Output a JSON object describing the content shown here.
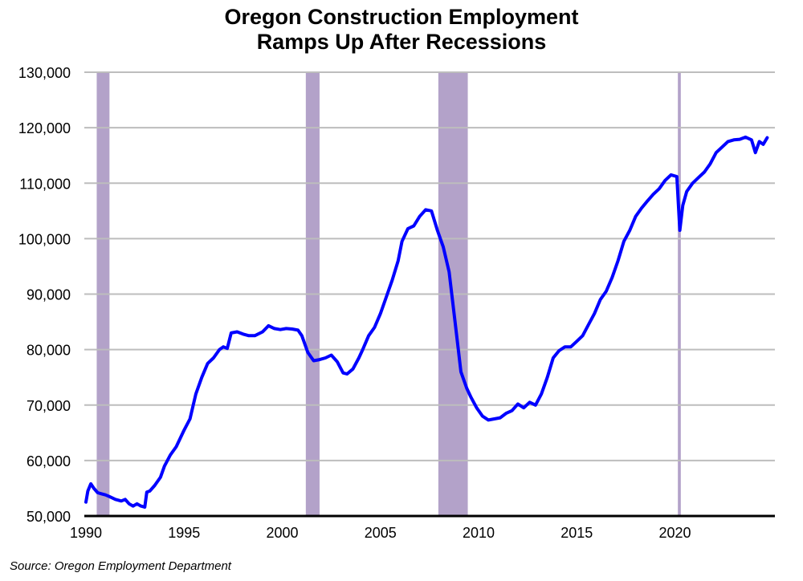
{
  "chart_data": {
    "type": "line",
    "title": "Oregon Construction Employment Ramps Up After Recessions",
    "title_lines": [
      "Oregon Construction Employment",
      "Ramps Up After Recessions"
    ],
    "xlabel": "",
    "ylabel": "",
    "source": "Source: Oregon Employment Department",
    "xlim": [
      1990,
      2025.2
    ],
    "ylim": [
      50000,
      130000
    ],
    "x_ticks": [
      1990,
      1995,
      2000,
      2005,
      2010,
      2015,
      2020
    ],
    "y_ticks": [
      50000,
      60000,
      70000,
      80000,
      90000,
      100000,
      110000,
      120000,
      130000
    ],
    "y_tick_labels": [
      "50,000",
      "60,000",
      "70,000",
      "80,000",
      "90,000",
      "100,000",
      "110,000",
      "120,000",
      "130,000"
    ],
    "grid": {
      "horizontal": true,
      "vertical": false,
      "color": "#bdbdbd"
    },
    "legend": null,
    "colors": {
      "line": "#0000ff",
      "recession": "#b3a2c9",
      "axis": "#000000"
    },
    "recessions": [
      {
        "start": 1990.55,
        "end": 1991.2
      },
      {
        "start": 2001.2,
        "end": 2001.9
      },
      {
        "start": 2007.95,
        "end": 2009.45
      },
      {
        "start": 2020.15,
        "end": 2020.3
      }
    ],
    "series": [
      {
        "name": "Oregon Construction Employment",
        "x": [
          1990.0,
          1990.1,
          1990.25,
          1990.4,
          1990.6,
          1990.8,
          1991.0,
          1991.2,
          1991.5,
          1991.8,
          1992.0,
          1992.2,
          1992.4,
          1992.6,
          1992.8,
          1993.0,
          1993.1,
          1993.25,
          1993.5,
          1993.8,
          1994.0,
          1994.3,
          1994.6,
          1995.0,
          1995.3,
          1995.6,
          1995.9,
          1996.2,
          1996.5,
          1996.8,
          1997.0,
          1997.2,
          1997.4,
          1997.7,
          1998.0,
          1998.3,
          1998.6,
          1999.0,
          1999.3,
          1999.6,
          1999.9,
          2000.2,
          2000.5,
          2000.8,
          2001.0,
          2001.3,
          2001.6,
          2001.9,
          2002.2,
          2002.5,
          2002.8,
          2003.1,
          2003.3,
          2003.6,
          2003.9,
          2004.1,
          2004.4,
          2004.7,
          2005.0,
          2005.3,
          2005.6,
          2005.9,
          2006.1,
          2006.4,
          2006.7,
          2007.0,
          2007.3,
          2007.6,
          2007.9,
          2008.2,
          2008.5,
          2008.8,
          2009.1,
          2009.4,
          2009.6,
          2009.9,
          2010.2,
          2010.5,
          2010.8,
          2011.1,
          2011.4,
          2011.7,
          2012.0,
          2012.3,
          2012.6,
          2012.9,
          2013.2,
          2013.5,
          2013.8,
          2014.1,
          2014.4,
          2014.7,
          2015.0,
          2015.3,
          2015.6,
          2015.9,
          2016.2,
          2016.5,
          2016.8,
          2017.1,
          2017.4,
          2017.7,
          2018.0,
          2018.3,
          2018.6,
          2018.9,
          2019.2,
          2019.5,
          2019.8,
          2020.1,
          2020.25,
          2020.4,
          2020.6,
          2020.9,
          2021.2,
          2021.5,
          2021.8,
          2022.1,
          2022.4,
          2022.7,
          2023.0,
          2023.3,
          2023.6,
          2023.9,
          2024.1,
          2024.3,
          2024.5,
          2024.7
        ],
        "values": [
          52500,
          54500,
          55800,
          55000,
          54200,
          54000,
          53800,
          53500,
          53000,
          52700,
          53000,
          52200,
          51800,
          52200,
          51800,
          51600,
          54300,
          54500,
          55500,
          57000,
          59000,
          61000,
          62500,
          65500,
          67500,
          72000,
          75000,
          77500,
          78500,
          80000,
          80500,
          80200,
          83000,
          83200,
          82800,
          82500,
          82500,
          83200,
          84300,
          83800,
          83600,
          83800,
          83700,
          83500,
          82500,
          79500,
          78000,
          78200,
          78500,
          79000,
          77800,
          75800,
          75600,
          76500,
          78500,
          80000,
          82500,
          84000,
          86500,
          89500,
          92500,
          96000,
          99500,
          101800,
          102300,
          104000,
          105200,
          105000,
          101500,
          98500,
          94000,
          85000,
          76000,
          73000,
          71500,
          69500,
          68000,
          67300,
          67500,
          67700,
          68500,
          69000,
          70200,
          69500,
          70500,
          70000,
          72000,
          75000,
          78500,
          79800,
          80500,
          80500,
          81500,
          82500,
          84500,
          86500,
          89000,
          90500,
          93000,
          96000,
          99500,
          101500,
          104000,
          105500,
          106800,
          108000,
          109000,
          110500,
          111500,
          111200,
          101500,
          106000,
          108500,
          110000,
          111000,
          112000,
          113500,
          115500,
          116500,
          117500,
          117800,
          117900,
          118300,
          117800,
          115500,
          117500,
          117000,
          118200
        ]
      }
    ]
  }
}
